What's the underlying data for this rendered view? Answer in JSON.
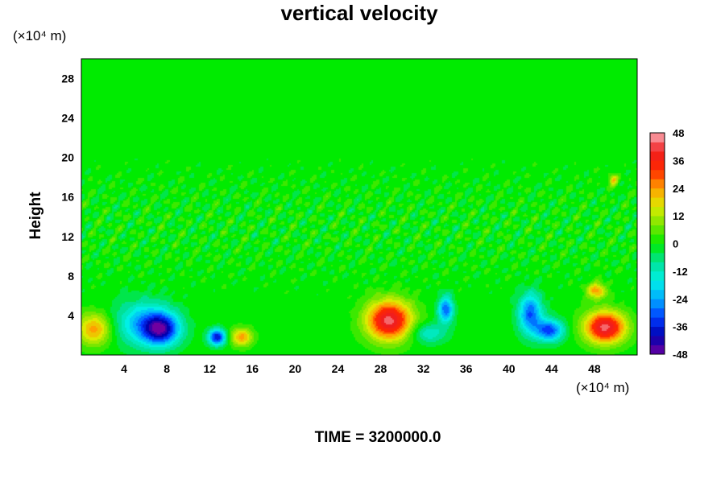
{
  "chart_data": {
    "type": "heatmap",
    "title": "vertical velocity",
    "ylabel": "Height",
    "x_unit": "(×10⁴ m)",
    "y_unit": "(×10⁴ m)",
    "footer": "TIME = 3200000.0",
    "xlim": [
      0,
      52
    ],
    "ylim": [
      0,
      30
    ],
    "x_ticks": [
      4,
      8,
      12,
      16,
      20,
      24,
      28,
      32,
      36,
      40,
      44,
      48
    ],
    "y_ticks": [
      4,
      8,
      12,
      16,
      20,
      24,
      28
    ],
    "colorbar": {
      "ticks": [
        48,
        36,
        24,
        12,
        0,
        -12,
        -24,
        -36,
        -48
      ],
      "range": [
        -48,
        48
      ],
      "step": 4
    },
    "features": [
      {
        "x": 1.2,
        "y": 2.6,
        "value": 24,
        "sx": 1.6,
        "sy": 1.6
      },
      {
        "x": 5.8,
        "y": 3.2,
        "value": -22,
        "sx": 2.6,
        "sy": 2.2
      },
      {
        "x": 7.5,
        "y": 2.6,
        "value": -36,
        "sx": 1.7,
        "sy": 1.6
      },
      {
        "x": 12.7,
        "y": 1.8,
        "value": -38,
        "sx": 0.8,
        "sy": 0.8
      },
      {
        "x": 15.0,
        "y": 1.8,
        "value": 24,
        "sx": 1.0,
        "sy": 0.9
      },
      {
        "x": 28.8,
        "y": 3.5,
        "value": 44,
        "sx": 2.1,
        "sy": 2.0
      },
      {
        "x": 34.1,
        "y": 4.6,
        "value": -30,
        "sx": 0.7,
        "sy": 1.3
      },
      {
        "x": 32.5,
        "y": 2.2,
        "value": -14,
        "sx": 1.6,
        "sy": 1.0
      },
      {
        "x": 42.0,
        "y": 4.2,
        "value": -30,
        "sx": 1.1,
        "sy": 2.0
      },
      {
        "x": 43.8,
        "y": 2.5,
        "value": -32,
        "sx": 1.3,
        "sy": 1.1
      },
      {
        "x": 49.0,
        "y": 2.8,
        "value": 44,
        "sx": 1.9,
        "sy": 1.6
      },
      {
        "x": 48.2,
        "y": 6.5,
        "value": 24,
        "sx": 0.9,
        "sy": 0.8
      },
      {
        "x": 49.8,
        "y": 17.7,
        "value": 22,
        "sx": 0.4,
        "sy": 0.5
      }
    ]
  }
}
